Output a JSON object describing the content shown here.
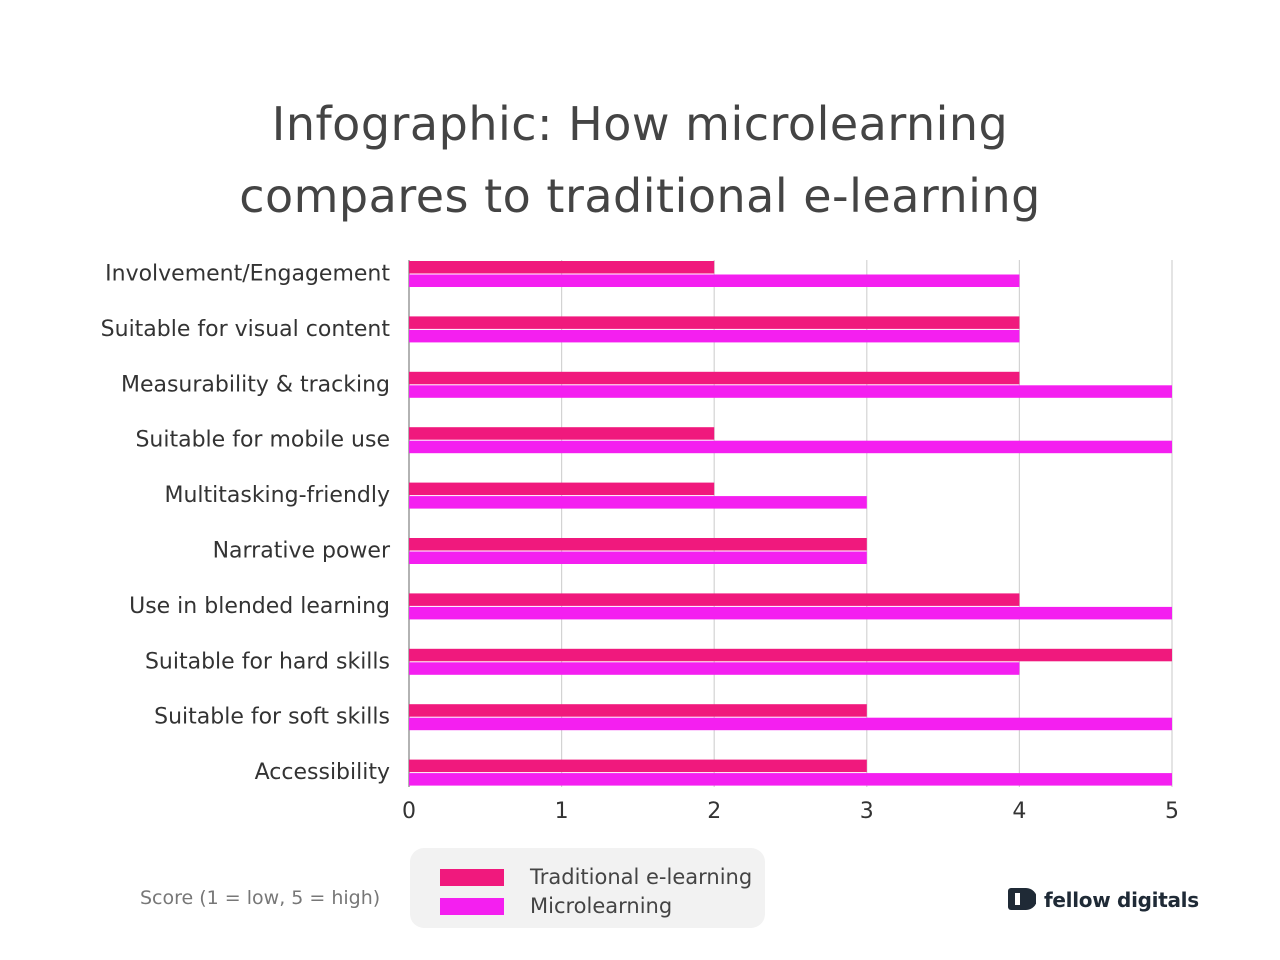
{
  "title": [
    "Infographic: How microlearning",
    "compares to traditional e-learning"
  ],
  "chart_data": {
    "type": "bar",
    "orientation": "horizontal",
    "categories": [
      "Involvement/Engagement",
      "Suitable for visual content",
      "Measurability & tracking",
      "Suitable for mobile use",
      "Multitasking-friendly",
      "Narrative power",
      "Use in blended learning",
      "Suitable for hard skills",
      "Suitable for soft skills",
      "Accessibility"
    ],
    "series": [
      {
        "name": "Traditional e-learning",
        "color": "#f0197d",
        "values": [
          2,
          4,
          4,
          2,
          2,
          3,
          4,
          5,
          3,
          3
        ]
      },
      {
        "name": "Microlearning",
        "color": "#f41ff0",
        "values": [
          4,
          4,
          5,
          5,
          3,
          3,
          5,
          4,
          5,
          5
        ]
      }
    ],
    "xlim": [
      0,
      5
    ],
    "xticks": [
      "0",
      "1",
      "2",
      "3",
      "4",
      "5"
    ],
    "grid": true,
    "legend": "bottom-center"
  },
  "score_note": "Score (1 = low, 5 = high)",
  "brand": {
    "name": "fellow digitals",
    "icon": "fellow-digitals-logo-icon"
  }
}
